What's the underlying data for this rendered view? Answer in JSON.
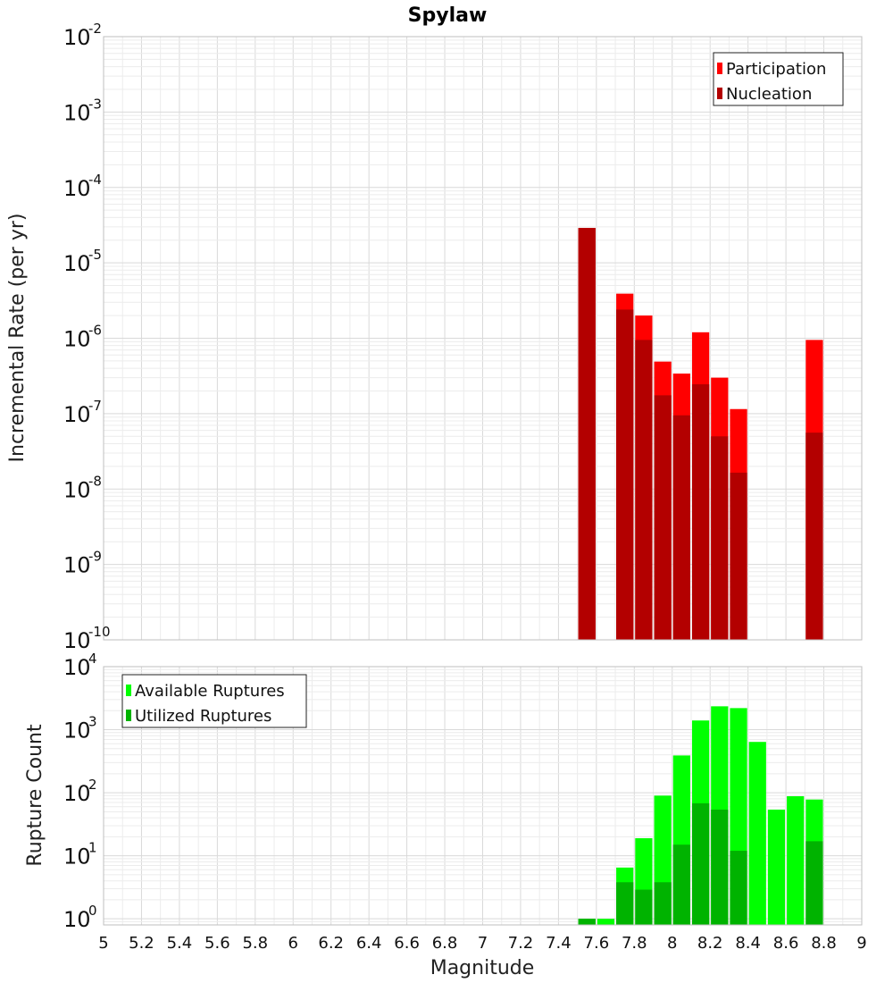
{
  "chart_data": [
    {
      "type": "bar",
      "panel": "top",
      "title": "Spylaw",
      "xlabel": "",
      "ylabel": "Incremental Rate (per yr)",
      "y_scale": "log",
      "ylim": [
        1e-10,
        0.01
      ],
      "xlim": [
        5,
        9
      ],
      "legend_placement": "top-right",
      "grid": true,
      "y_ticks": [
        {
          "base": "10",
          "exp": "-10",
          "value": 1e-10
        },
        {
          "base": "10",
          "exp": "-9",
          "value": 1e-09
        },
        {
          "base": "10",
          "exp": "-8",
          "value": 1e-08
        },
        {
          "base": "10",
          "exp": "-7",
          "value": 1e-07
        },
        {
          "base": "10",
          "exp": "-6",
          "value": 1e-06
        },
        {
          "base": "10",
          "exp": "-5",
          "value": 1e-05
        },
        {
          "base": "10",
          "exp": "-4",
          "value": 0.0001
        },
        {
          "base": "10",
          "exp": "-3",
          "value": 0.001
        },
        {
          "base": "10",
          "exp": "-2",
          "value": 0.01
        }
      ],
      "series": [
        {
          "name": "Participation",
          "color": "#ff0000",
          "x": [
            7.55,
            7.75,
            7.85,
            7.95,
            8.05,
            8.15,
            8.25,
            8.35,
            8.75
          ],
          "values": [
            2.9e-05,
            3.9e-06,
            2e-06,
            4.9e-07,
            3.4e-07,
            1.2e-06,
            3e-07,
            1.15e-07,
            9.5e-07
          ]
        },
        {
          "name": "Nucleation",
          "color": "#b30000",
          "x": [
            7.55,
            7.75,
            7.85,
            7.95,
            8.05,
            8.15,
            8.25,
            8.35,
            8.75
          ],
          "values": [
            2.9e-05,
            2.4e-06,
            9.5e-07,
            1.75e-07,
            9.5e-08,
            2.45e-07,
            5e-08,
            1.65e-08,
            5.6e-08
          ]
        }
      ]
    },
    {
      "type": "bar",
      "panel": "bottom",
      "title": "",
      "xlabel": "Magnitude",
      "ylabel": "Rupture Count",
      "y_scale": "log",
      "ylim": [
        0.8,
        10000
      ],
      "xlim": [
        5,
        9
      ],
      "legend_placement": "top-left",
      "grid": true,
      "x_ticks": [
        "5",
        "5.2",
        "5.4",
        "5.6",
        "5.8",
        "6",
        "6.2",
        "6.4",
        "6.6",
        "6.8",
        "7",
        "7.2",
        "7.4",
        "7.6",
        "7.8",
        "8",
        "8.2",
        "8.4",
        "8.6",
        "8.8",
        "9"
      ],
      "y_ticks": [
        {
          "base": "10",
          "exp": "0",
          "value": 1
        },
        {
          "base": "10",
          "exp": "1",
          "value": 10
        },
        {
          "base": "10",
          "exp": "2",
          "value": 100
        },
        {
          "base": "10",
          "exp": "3",
          "value": 1000
        },
        {
          "base": "10",
          "exp": "4",
          "value": 10000
        }
      ],
      "series": [
        {
          "name": "Available Ruptures",
          "color": "#00ff00",
          "x": [
            7.55,
            7.65,
            7.75,
            7.85,
            7.95,
            8.05,
            8.15,
            8.25,
            8.35,
            8.45,
            8.55,
            8.65,
            8.75
          ],
          "values": [
            1,
            1,
            6.5,
            19,
            90,
            390,
            1400,
            2350,
            2200,
            640,
            54,
            88,
            78
          ]
        },
        {
          "name": "Utilized Ruptures",
          "color": "#00b300",
          "x": [
            7.55,
            7.65,
            7.75,
            7.85,
            7.95,
            8.05,
            8.15,
            8.25,
            8.35,
            8.45,
            8.55,
            8.65,
            8.75
          ],
          "values": [
            1,
            0,
            3.8,
            2.9,
            3.8,
            15,
            68,
            54,
            12,
            0,
            0,
            0,
            17
          ]
        }
      ]
    }
  ]
}
